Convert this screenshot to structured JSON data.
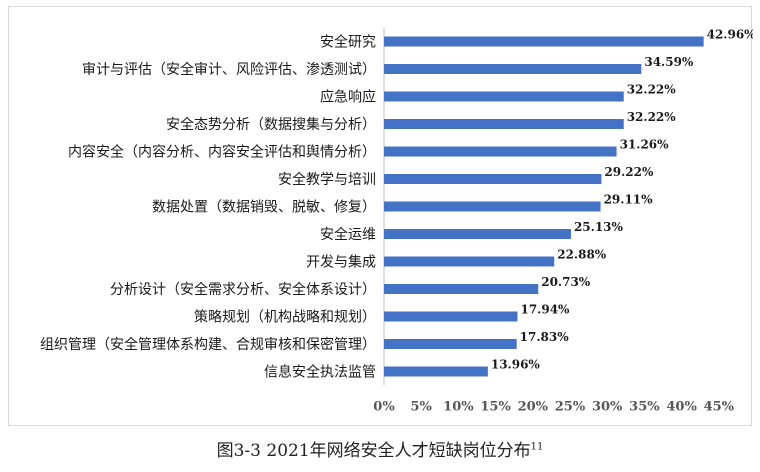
{
  "caption": {
    "text": "图3-3 2021年网络安全人才短缺岗位分布",
    "superscript": "11"
  },
  "chart_data": {
    "type": "bar",
    "orientation": "horizontal",
    "title": "",
    "xlabel": "",
    "ylabel": "",
    "xlim": [
      0,
      45
    ],
    "xticks": [
      "0%",
      "5%",
      "10%",
      "15%",
      "20%",
      "25%",
      "30%",
      "35%",
      "40%",
      "45%"
    ],
    "grid": false,
    "bar_color": "#4472C4",
    "categories": [
      "安全研究",
      "审计与评估（安全审计、风险评估、渗透测试）",
      "应急响应",
      "安全态势分析（数据搜集与分析）",
      "内容安全（内容分析、内容安全评估和舆情分析）",
      "安全教学与培训",
      "数据处置（数据销毁、脱敏、修复）",
      "安全运维",
      "开发与集成",
      "分析设计（安全需求分析、安全体系设计）",
      "策略规划（机构战略和规划）",
      "组织管理（安全管理体系构建、合规审核和保密管理）",
      "信息安全执法监管"
    ],
    "values": [
      42.96,
      34.59,
      32.22,
      32.22,
      31.26,
      29.22,
      29.11,
      25.13,
      22.88,
      20.73,
      17.94,
      17.83,
      13.96
    ],
    "labels": [
      "42.96%",
      "34.59%",
      "32.22%",
      "32.22%",
      "31.26%",
      "29.22%",
      "29.11%",
      "25.13%",
      "22.88%",
      "20.73%",
      "17.94%",
      "17.83%",
      "13.96%"
    ]
  }
}
